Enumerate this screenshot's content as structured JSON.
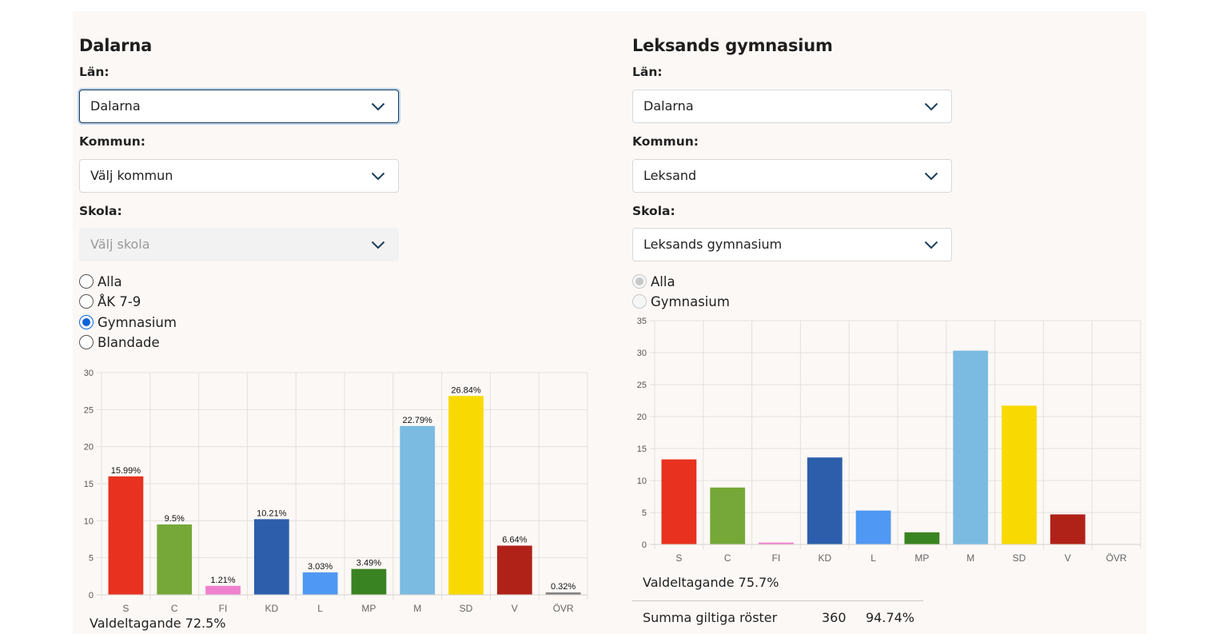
{
  "left": {
    "title": "Dalarna",
    "lan_label": "Län:",
    "lan_value": "Dalarna",
    "kommun_label": "Kommun:",
    "kommun_value": "Välj kommun",
    "skola_label": "Skola:",
    "skola_value": "Välj skola",
    "radios": [
      {
        "label": "Alla",
        "checked": false
      },
      {
        "label": "ÅK 7-9",
        "checked": false
      },
      {
        "label": "Gymnasium",
        "checked": true
      },
      {
        "label": "Blandade",
        "checked": false
      }
    ],
    "valdeltagande": "Valdeltagande 72.5%"
  },
  "right": {
    "title": "Leksands gymnasium",
    "lan_label": "Län:",
    "lan_value": "Dalarna",
    "kommun_label": "Kommun:",
    "kommun_value": "Leksand",
    "skola_label": "Skola:",
    "skola_value": "Leksands gymnasium",
    "radios": [
      {
        "label": "Alla",
        "checked": true,
        "disabled": true
      },
      {
        "label": "Gymnasium",
        "checked": false,
        "disabled": true
      }
    ],
    "valdeltagande": "Valdeltagande 75.7%",
    "summa": {
      "label": "Summa giltiga röster",
      "count": "360",
      "percent": "94.74%"
    }
  },
  "chart_data": [
    {
      "type": "bar",
      "categories": [
        "S",
        "C",
        "FI",
        "KD",
        "L",
        "MP",
        "M",
        "SD",
        "V",
        "ÖVR"
      ],
      "values": [
        15.99,
        9.5,
        1.21,
        10.21,
        3.03,
        3.49,
        22.79,
        26.84,
        6.64,
        0.32
      ],
      "data_labels": [
        "15.99%",
        "9.5%",
        "1.21%",
        "10.21%",
        "3.03%",
        "3.49%",
        "22.79%",
        "26.84%",
        "6.64%",
        "0.32%"
      ],
      "colors": [
        "#e8311e",
        "#75a838",
        "#ef82cf",
        "#2c5eab",
        "#4f98f3",
        "#3a8322",
        "#7bbbe1",
        "#f8da02",
        "#b02218",
        "#808080"
      ],
      "ylim": [
        0,
        30
      ],
      "yticks": [
        0,
        5,
        10,
        15,
        20,
        25,
        30
      ],
      "grid": true
    },
    {
      "type": "bar",
      "categories": [
        "S",
        "C",
        "FI",
        "KD",
        "L",
        "MP",
        "M",
        "SD",
        "V",
        "ÖVR"
      ],
      "values": [
        13.3,
        8.9,
        0.3,
        13.6,
        5.3,
        1.9,
        30.3,
        21.7,
        4.7,
        0
      ],
      "colors": [
        "#e8311e",
        "#75a838",
        "#ef82cf",
        "#2c5eab",
        "#4f98f3",
        "#3a8322",
        "#7bbbe1",
        "#f8da02",
        "#b02218",
        "#808080"
      ],
      "ylim": [
        0,
        35
      ],
      "yticks": [
        0,
        5,
        10,
        15,
        20,
        25,
        30,
        35
      ],
      "grid": true
    }
  ]
}
